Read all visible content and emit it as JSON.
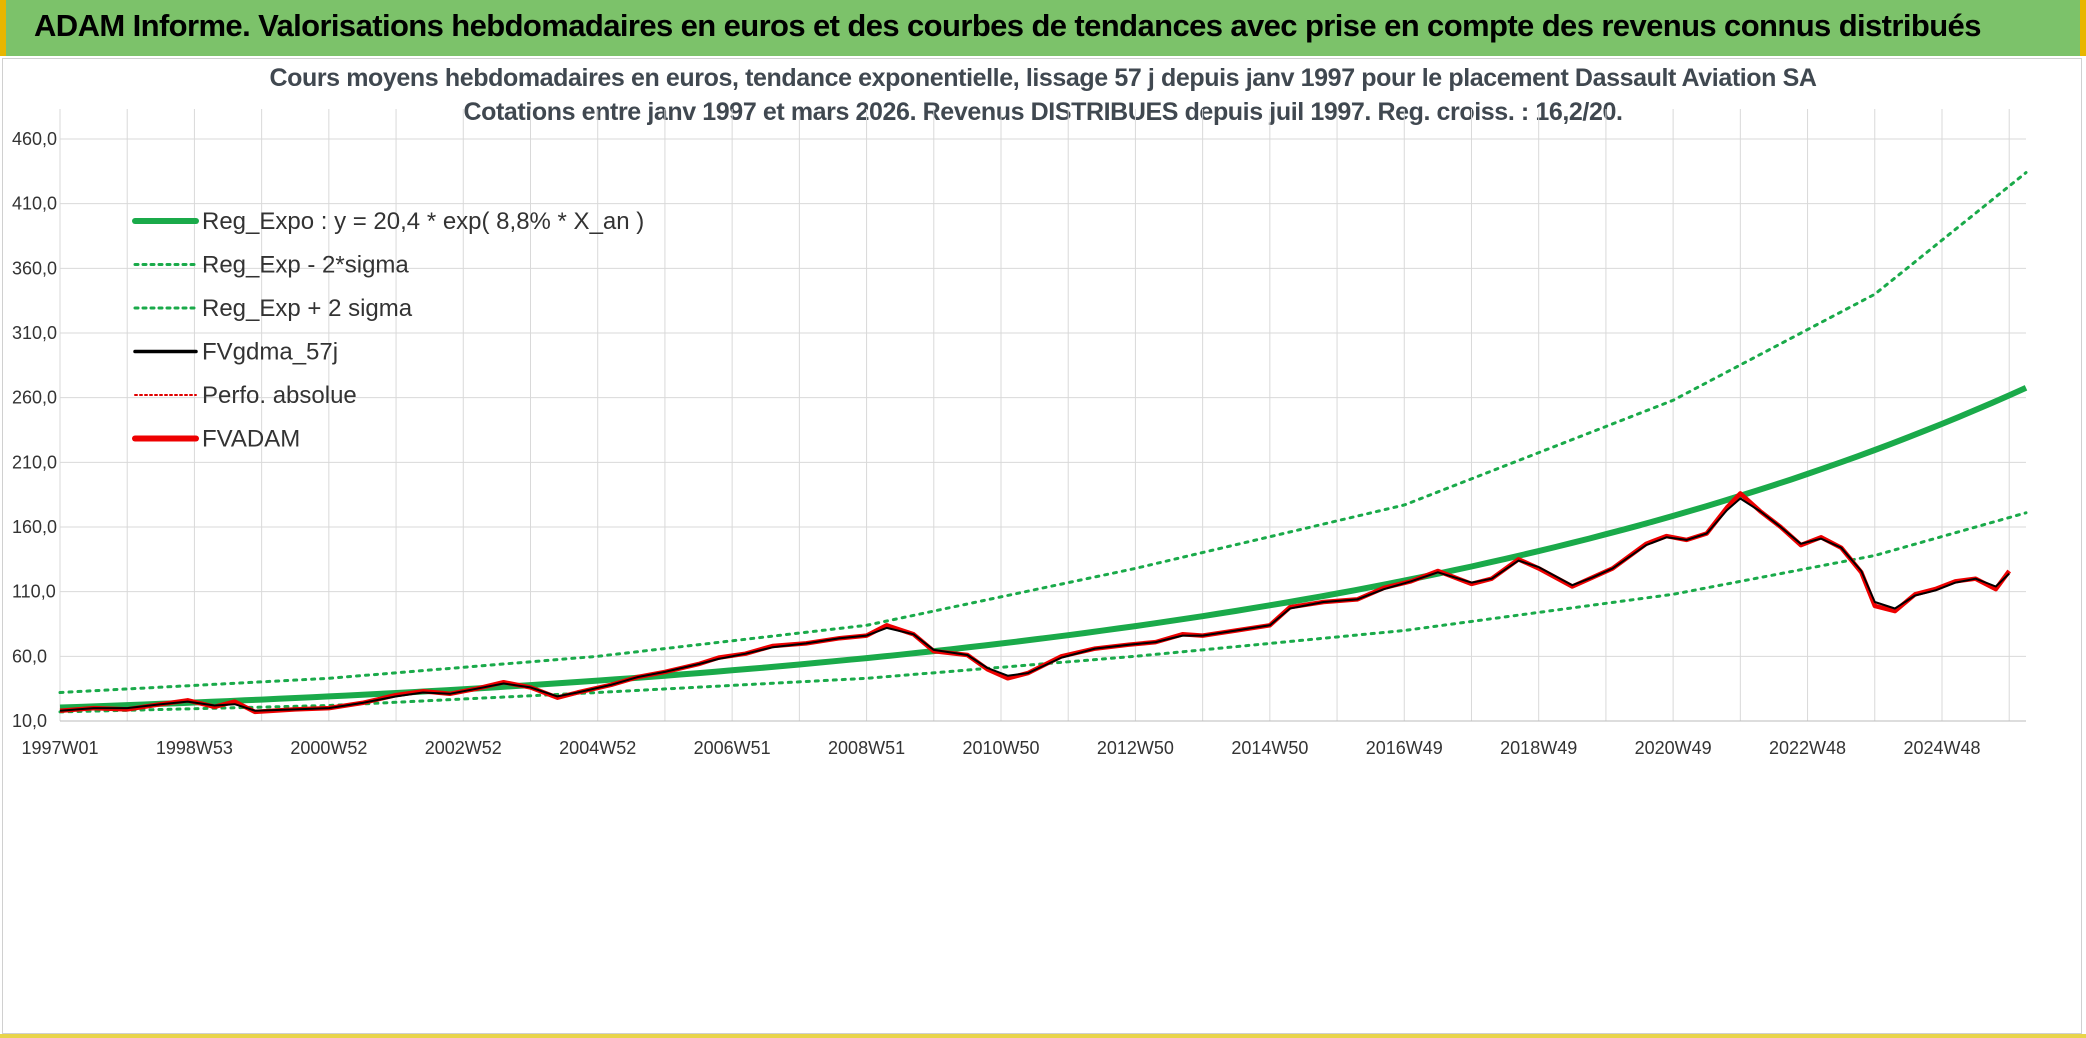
{
  "banner": {
    "title": "ADAM Informe. Valorisations hebdomadaires en euros et des courbes de tendances avec prise en compte des revenus connus distribués"
  },
  "colors": {
    "banner_bg": "#7cc26a",
    "reg_expo": "#1aaa4a",
    "fvgdma": "#000000",
    "perfo": "#e00000",
    "fvadam": "#ee0000",
    "grid": "#d9d9d9"
  },
  "chart_data": {
    "type": "line",
    "title_line1": "Cours moyens hebdomadaires en euros, tendance exponentielle, lissage 57 j depuis janv 1997 pour le placement Dassault Aviation SA",
    "title_line2": "Cotations entre janv 1997 et mars 2026. Revenus DISTRIBUES depuis juil 1997. Reg. croiss. : 16,2/20.",
    "x_tick_labels": [
      "1997W01",
      "1998W53",
      "2000W52",
      "2002W52",
      "2004W52",
      "2006W51",
      "2008W51",
      "2010W50",
      "2012W50",
      "2014W50",
      "2016W49",
      "2018W49",
      "2020W49",
      "2022W48",
      "2024W48"
    ],
    "x_tick_years": [
      1997.0,
      1999.0,
      2001.0,
      2003.0,
      2005.0,
      2007.0,
      2009.0,
      2011.0,
      2013.0,
      2015.0,
      2017.0,
      2019.0,
      2021.0,
      2023.0,
      2025.0
    ],
    "xlim": [
      1997.0,
      2026.25
    ],
    "y_tick_labels": [
      "10,0",
      "60,0",
      "110,0",
      "160,0",
      "210,0",
      "260,0",
      "310,0",
      "360,0",
      "410,0",
      "460,0"
    ],
    "y_ticks": [
      10,
      60,
      110,
      160,
      210,
      260,
      310,
      360,
      410,
      460
    ],
    "ylim": [
      10,
      460
    ],
    "grid": true,
    "legend_position": "top-left",
    "legend": [
      {
        "label": "Reg_Expo : y = 20,4 * exp( 8,8% *  X_an )",
        "color": "#1aaa4a",
        "style": "solid-thick"
      },
      {
        "label": "Reg_Exp - 2*sigma",
        "color": "#1aaa4a",
        "style": "dotted"
      },
      {
        "label": "Reg_Exp + 2 sigma",
        "color": "#1aaa4a",
        "style": "dotted"
      },
      {
        "label": "FVgdma_57j",
        "color": "#000000",
        "style": "solid"
      },
      {
        "label": "Perfo. absolue",
        "color": "#e00000",
        "style": "dotted-thin"
      },
      {
        "label": "FVADAM",
        "color": "#ee0000",
        "style": "solid-thick"
      }
    ],
    "regression": {
      "a": 20.4,
      "rate": 0.088,
      "start_year": 1997.0
    },
    "band_low": [
      [
        1997.0,
        17
      ],
      [
        2001.0,
        22
      ],
      [
        2005.0,
        32
      ],
      [
        2009.0,
        43
      ],
      [
        2013.0,
        60
      ],
      [
        2017.0,
        80
      ],
      [
        2021.0,
        108
      ],
      [
        2024.0,
        138
      ],
      [
        2026.25,
        171
      ]
    ],
    "band_high": [
      [
        1997.0,
        32
      ],
      [
        2001.0,
        43
      ],
      [
        2005.0,
        60
      ],
      [
        2009.0,
        84
      ],
      [
        2013.0,
        128
      ],
      [
        2017.0,
        177
      ],
      [
        2021.0,
        258
      ],
      [
        2024.0,
        340
      ],
      [
        2026.25,
        434
      ]
    ],
    "series": [
      {
        "name": "FVADAM",
        "points": [
          [
            1997.0,
            18
          ],
          [
            1997.5,
            20
          ],
          [
            1998.0,
            19
          ],
          [
            1998.5,
            23
          ],
          [
            1998.9,
            26
          ],
          [
            1999.3,
            21
          ],
          [
            1999.6,
            25
          ],
          [
            1999.9,
            17
          ],
          [
            2000.5,
            19
          ],
          [
            2001.0,
            20
          ],
          [
            2001.5,
            24
          ],
          [
            2002.0,
            30
          ],
          [
            2002.4,
            33
          ],
          [
            2002.8,
            31
          ],
          [
            2003.2,
            35
          ],
          [
            2003.6,
            40
          ],
          [
            2004.0,
            36
          ],
          [
            2004.4,
            28
          ],
          [
            2004.7,
            32
          ],
          [
            2005.2,
            38
          ],
          [
            2005.6,
            44
          ],
          [
            2006.0,
            48
          ],
          [
            2006.5,
            54
          ],
          [
            2006.8,
            59
          ],
          [
            2007.2,
            62
          ],
          [
            2007.6,
            68
          ],
          [
            2008.1,
            70
          ],
          [
            2008.6,
            74
          ],
          [
            2009.0,
            76
          ],
          [
            2009.3,
            84
          ],
          [
            2009.7,
            77
          ],
          [
            2010.0,
            64
          ],
          [
            2010.5,
            61
          ],
          [
            2010.8,
            50
          ],
          [
            2011.1,
            43
          ],
          [
            2011.4,
            47
          ],
          [
            2011.9,
            60
          ],
          [
            2012.4,
            66
          ],
          [
            2012.9,
            69
          ],
          [
            2013.3,
            71
          ],
          [
            2013.7,
            77
          ],
          [
            2014.0,
            76
          ],
          [
            2014.5,
            80
          ],
          [
            2015.0,
            84
          ],
          [
            2015.3,
            98
          ],
          [
            2015.8,
            102
          ],
          [
            2016.3,
            104
          ],
          [
            2016.7,
            113
          ],
          [
            2017.1,
            118
          ],
          [
            2017.5,
            126
          ],
          [
            2018.0,
            116
          ],
          [
            2018.3,
            120
          ],
          [
            2018.7,
            135
          ],
          [
            2019.0,
            128
          ],
          [
            2019.5,
            114
          ],
          [
            2019.8,
            121
          ],
          [
            2020.1,
            128
          ],
          [
            2020.6,
            147
          ],
          [
            2020.9,
            153
          ],
          [
            2021.2,
            150
          ],
          [
            2021.5,
            155
          ],
          [
            2021.8,
            175
          ],
          [
            2022.0,
            186
          ],
          [
            2022.3,
            172
          ],
          [
            2022.6,
            160
          ],
          [
            2022.9,
            146
          ],
          [
            2023.2,
            152
          ],
          [
            2023.5,
            144
          ],
          [
            2023.8,
            125
          ],
          [
            2024.0,
            99
          ],
          [
            2024.3,
            95
          ],
          [
            2024.6,
            108
          ],
          [
            2024.9,
            112
          ],
          [
            2025.2,
            118
          ],
          [
            2025.5,
            120
          ],
          [
            2025.8,
            112
          ],
          [
            2026.0,
            126
          ]
        ]
      },
      {
        "name": "FVgdma_57j",
        "points": [
          [
            1997.0,
            18
          ],
          [
            1997.5,
            20
          ],
          [
            1998.0,
            20
          ],
          [
            1998.5,
            23
          ],
          [
            1998.9,
            25
          ],
          [
            1999.3,
            22
          ],
          [
            1999.6,
            23
          ],
          [
            1999.9,
            18
          ],
          [
            2000.5,
            19
          ],
          [
            2001.0,
            20
          ],
          [
            2001.5,
            24
          ],
          [
            2002.0,
            29
          ],
          [
            2002.4,
            32
          ],
          [
            2002.8,
            31
          ],
          [
            2003.2,
            35
          ],
          [
            2003.6,
            39
          ],
          [
            2004.0,
            36
          ],
          [
            2004.4,
            29
          ],
          [
            2004.7,
            32
          ],
          [
            2005.2,
            38
          ],
          [
            2005.6,
            44
          ],
          [
            2006.0,
            48
          ],
          [
            2006.5,
            54
          ],
          [
            2006.8,
            58
          ],
          [
            2007.2,
            62
          ],
          [
            2007.6,
            67
          ],
          [
            2008.1,
            70
          ],
          [
            2008.6,
            74
          ],
          [
            2009.0,
            76
          ],
          [
            2009.3,
            82
          ],
          [
            2009.7,
            77
          ],
          [
            2010.0,
            65
          ],
          [
            2010.5,
            61
          ],
          [
            2010.8,
            51
          ],
          [
            2011.1,
            45
          ],
          [
            2011.4,
            47
          ],
          [
            2011.9,
            59
          ],
          [
            2012.4,
            66
          ],
          [
            2012.9,
            69
          ],
          [
            2013.3,
            71
          ],
          [
            2013.7,
            76
          ],
          [
            2014.0,
            76
          ],
          [
            2014.5,
            80
          ],
          [
            2015.0,
            84
          ],
          [
            2015.3,
            97
          ],
          [
            2015.8,
            102
          ],
          [
            2016.3,
            104
          ],
          [
            2016.7,
            112
          ],
          [
            2017.1,
            118
          ],
          [
            2017.5,
            125
          ],
          [
            2018.0,
            117
          ],
          [
            2018.3,
            120
          ],
          [
            2018.7,
            134
          ],
          [
            2019.0,
            129
          ],
          [
            2019.5,
            115
          ],
          [
            2019.8,
            121
          ],
          [
            2020.1,
            128
          ],
          [
            2020.6,
            146
          ],
          [
            2020.9,
            152
          ],
          [
            2021.2,
            150
          ],
          [
            2021.5,
            155
          ],
          [
            2021.8,
            173
          ],
          [
            2022.0,
            182
          ],
          [
            2022.3,
            172
          ],
          [
            2022.6,
            160
          ],
          [
            2022.9,
            147
          ],
          [
            2023.2,
            151
          ],
          [
            2023.5,
            144
          ],
          [
            2023.8,
            126
          ],
          [
            2024.0,
            102
          ],
          [
            2024.3,
            97
          ],
          [
            2024.6,
            107
          ],
          [
            2024.9,
            111
          ],
          [
            2025.2,
            117
          ],
          [
            2025.5,
            120
          ],
          [
            2025.8,
            114
          ],
          [
            2026.0,
            124
          ]
        ]
      }
    ]
  }
}
